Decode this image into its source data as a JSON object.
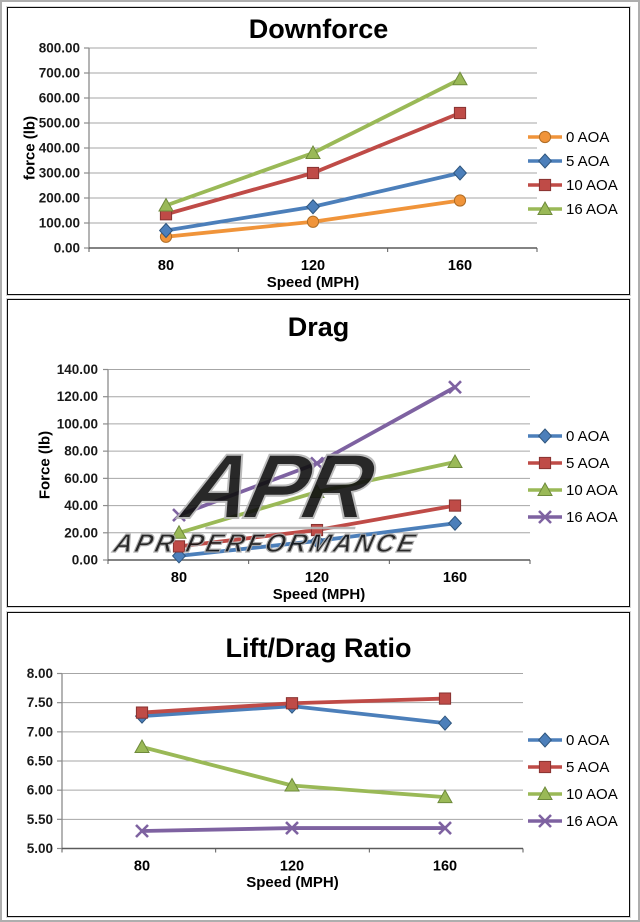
{
  "page": {
    "background": "#ffffff",
    "frame_color": "#aeaeae",
    "panel_border_color": "#0a0a0a",
    "gridline_color": "#a6a6a6",
    "axis_line_color": "#8c8c8c",
    "x_axis_color": "#5a5a5a"
  },
  "watermark": {
    "logo_text": "APR",
    "text": "APR PERFORMANCE",
    "color": "#b5b5b5"
  },
  "chart_data": [
    {
      "type": "line",
      "title": "Downforce",
      "xlabel": "Speed (MPH)",
      "ylabel": "force (lb)",
      "categories": [
        "80",
        "120",
        "160"
      ],
      "x": [
        80,
        120,
        160
      ],
      "ylim": [
        0,
        800
      ],
      "ystep": 100,
      "y_tick_labels": [
        "800.00",
        "700.00",
        "600.00",
        "500.00",
        "400.00",
        "300.00",
        "200.00",
        "100.00",
        "0.00"
      ],
      "grid": true,
      "legend_position": "right",
      "series": [
        {
          "name": "0 AOA",
          "marker": "circle",
          "color": "#F0943A",
          "edge": "#AF6D25",
          "values": [
            45,
            105,
            190
          ]
        },
        {
          "name": "5 AOA",
          "marker": "diamond",
          "color": "#4C7FBA",
          "edge": "#2F567E",
          "values": [
            70,
            165,
            300
          ]
        },
        {
          "name": "10 AOA",
          "marker": "square",
          "color": "#BF4B47",
          "edge": "#883331",
          "values": [
            135,
            300,
            540
          ]
        },
        {
          "name": "16 AOA",
          "marker": "triangle",
          "color": "#9AB957",
          "edge": "#6E8A3B",
          "values": [
            170,
            380,
            675
          ]
        }
      ]
    },
    {
      "type": "line",
      "title": "Drag",
      "xlabel": "Speed (MPH)",
      "ylabel": "Force (lb)",
      "categories": [
        "80",
        "120",
        "160"
      ],
      "x": [
        80,
        120,
        160
      ],
      "ylim": [
        0,
        140
      ],
      "ystep": 20,
      "y_tick_labels": [
        "140.00",
        "120.00",
        "100.00",
        "80.00",
        "60.00",
        "40.00",
        "20.00",
        "0.00"
      ],
      "grid": true,
      "legend_position": "right",
      "has_watermark": true,
      "series": [
        {
          "name": "0 AOA",
          "marker": "diamond",
          "color": "#4C7FBA",
          "edge": "#2F567E",
          "values": [
            3,
            14,
            27
          ]
        },
        {
          "name": "5 AOA",
          "marker": "square",
          "color": "#BF4B47",
          "edge": "#883331",
          "values": [
            10,
            22,
            40
          ]
        },
        {
          "name": "10 AOA",
          "marker": "triangle",
          "color": "#9AB957",
          "edge": "#6E8A3B",
          "values": [
            20,
            50,
            72
          ]
        },
        {
          "name": "16 AOA",
          "marker": "xmark",
          "color": "#7E62A1",
          "edge": "#5D477B",
          "values": [
            33,
            71,
            127
          ]
        }
      ]
    },
    {
      "type": "line",
      "title": "Lift/Drag Ratio",
      "xlabel": "Speed (MPH)",
      "ylabel": "",
      "categories": [
        "80",
        "120",
        "160"
      ],
      "x": [
        80,
        120,
        160
      ],
      "ylim": [
        5,
        8
      ],
      "ystep": 0.5,
      "y_tick_labels": [
        "8.00",
        "7.50",
        "7.00",
        "6.50",
        "6.00",
        "5.50",
        "5.00"
      ],
      "grid": true,
      "legend_position": "right",
      "series": [
        {
          "name": "0 AOA",
          "marker": "diamond",
          "color": "#4C7FBA",
          "edge": "#2F567E",
          "values": [
            7.27,
            7.44,
            7.15
          ]
        },
        {
          "name": "5 AOA",
          "marker": "square",
          "color": "#BF4B47",
          "edge": "#883331",
          "values": [
            7.33,
            7.49,
            7.57
          ]
        },
        {
          "name": "10 AOA",
          "marker": "triangle",
          "color": "#9AB957",
          "edge": "#6E8A3B",
          "values": [
            6.74,
            6.08,
            5.88
          ]
        },
        {
          "name": "16 AOA",
          "marker": "xmark",
          "color": "#7E62A1",
          "edge": "#5D477B",
          "values": [
            5.3,
            5.35,
            5.35
          ]
        }
      ]
    }
  ]
}
